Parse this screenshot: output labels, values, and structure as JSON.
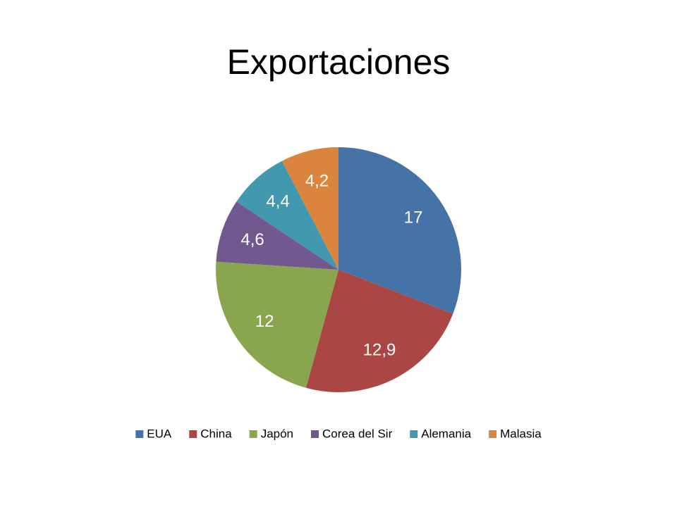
{
  "chart_data": {
    "type": "pie",
    "title": "Exportaciones",
    "categories": [
      "EUA",
      "China",
      "Japón",
      "Corea del Sir",
      "Alemania",
      "Malasia"
    ],
    "values": [
      17,
      12.9,
      12,
      4.6,
      4.4,
      4.2
    ],
    "value_labels": [
      "17",
      "12,9",
      "12",
      "4,6",
      "4,4",
      "4,2"
    ],
    "colors": [
      "#4572a7",
      "#aa4643",
      "#89a54e",
      "#71588f",
      "#4198af",
      "#db843d"
    ],
    "legend": "bottom"
  }
}
